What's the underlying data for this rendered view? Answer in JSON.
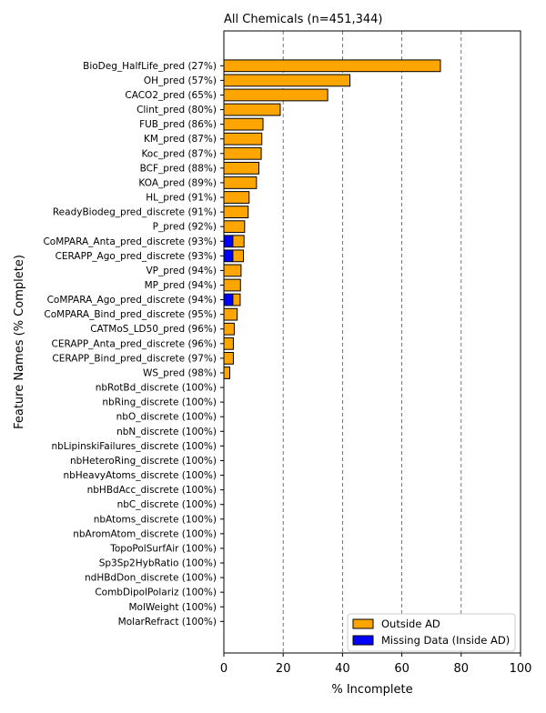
{
  "chart_data": {
    "type": "bar",
    "orientation": "horizontal",
    "stacked": true,
    "title": "All Chemicals (n=451,344)",
    "xlabel": "% Incomplete",
    "ylabel": "Feature Names (% Complete)",
    "xlim": [
      0,
      100
    ],
    "xticks": [
      "0",
      "20",
      "40",
      "60",
      "80",
      "100"
    ],
    "grid": "vertical dashed at 20, 40, 60, 80",
    "legend_position": "lower-right",
    "categories": [
      "BioDeg_HalfLife_pred (27%)",
      "OH_pred (57%)",
      "CACO2_pred (65%)",
      "Clint_pred (80%)",
      "FUB_pred (86%)",
      "KM_pred (87%)",
      "Koc_pred (87%)",
      "BCF_pred (88%)",
      "KOA_pred (89%)",
      "HL_pred (91%)",
      "ReadyBiodeg_pred_discrete (91%)",
      "P_pred (92%)",
      "CoMPARA_Anta_pred_discrete (93%)",
      "CERAPP_Ago_pred_discrete (93%)",
      "VP_pred (94%)",
      "MP_pred (94%)",
      "CoMPARA_Ago_pred_discrete (94%)",
      "CoMPARA_Bind_pred_discrete (95%)",
      "CATMoS_LD50_pred (96%)",
      "CERAPP_Anta_pred_discrete (96%)",
      "CERAPP_Bind_pred_discrete (97%)",
      "WS_pred (98%)",
      "nbRotBd_discrete (100%)",
      "nbRing_discrete (100%)",
      "nbO_discrete (100%)",
      "nbN_discrete (100%)",
      "nbLipinskiFailures_discrete (100%)",
      "nbHeteroRing_discrete (100%)",
      "nbHeavyAtoms_discrete (100%)",
      "nbHBdAcc_discrete (100%)",
      "nbC_discrete (100%)",
      "nbAtoms_discrete (100%)",
      "nbAromAtom_discrete (100%)",
      "TopoPolSurfAir (100%)",
      "Sp3Sp2HybRatio (100%)",
      "ndHBdDon_discrete (100%)",
      "CombDipolPolariz (100%)",
      "MolWeight (100%)",
      "MolarRefract (100%)"
    ],
    "series": [
      {
        "name": "Missing Data (Inside AD)",
        "color": "#0000ff",
        "values": [
          0,
          0,
          0,
          0,
          0,
          0,
          0,
          0,
          0,
          0,
          0,
          0,
          3.0,
          3.0,
          0,
          0,
          3.0,
          0,
          0,
          0,
          0,
          0,
          0,
          0,
          0,
          0,
          0,
          0,
          0,
          0,
          0,
          0,
          0,
          0,
          0,
          0,
          0,
          0,
          0
        ]
      },
      {
        "name": "Outside AD",
        "color": "#ffa500",
        "values": [
          73,
          42.5,
          35,
          19,
          13.2,
          12.8,
          12.6,
          11.8,
          11,
          8.5,
          8.2,
          7,
          3.8,
          3.6,
          5.8,
          5.6,
          2.5,
          4.5,
          3.5,
          3.2,
          3.2,
          2.0,
          0,
          0,
          0,
          0,
          0,
          0,
          0,
          0,
          0,
          0,
          0,
          0,
          0,
          0,
          0,
          0,
          0
        ]
      }
    ]
  }
}
